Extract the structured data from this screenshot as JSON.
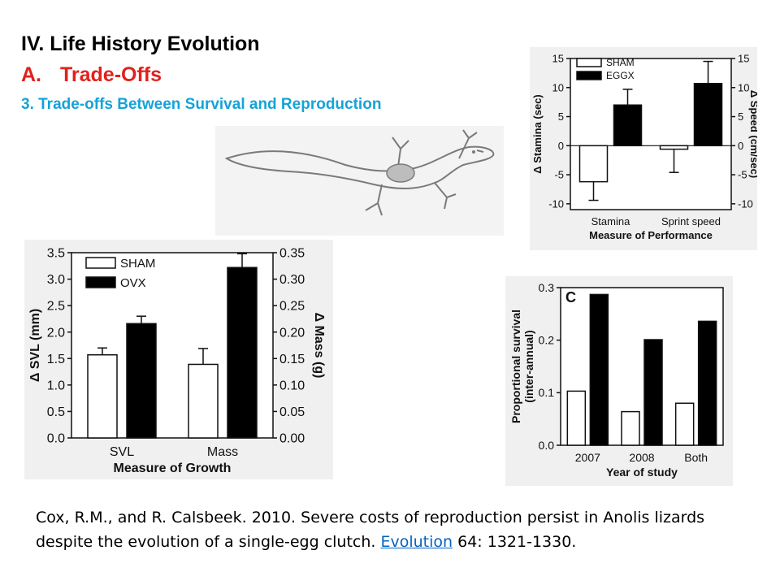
{
  "slide": {
    "title": "IV. Life History Evolution",
    "subtitle_num": "A.",
    "subtitle": "Trade-Offs",
    "section": "3. Trade-offs Between Survival and Reproduction"
  },
  "citation": {
    "text1": "Cox, R.M., and R. Calsbeek. 2010. Severe costs of reproduction persist in Anolis lizards",
    "text2": "despite the evolution of a single-egg clutch. ",
    "link": "Evolution",
    "text3": " 64: 1321-1330."
  },
  "chart_data": [
    {
      "id": "performance",
      "type": "bar",
      "categories": [
        "Stamina",
        "Sprint speed"
      ],
      "series": [
        {
          "name": "SHAM",
          "values": [
            -6.2,
            -0.6
          ],
          "errors": [
            3.2,
            4.0
          ],
          "color": "#ffffff"
        },
        {
          "name": "EGGX",
          "values": [
            7.0,
            10.7
          ],
          "errors": [
            2.7,
            3.8
          ],
          "color": "#000000"
        }
      ],
      "xlabel": "Measure of Performance",
      "ylabel_left": "Δ Stamina (sec)",
      "ylabel_right": "Δ Speed (cm/sec)",
      "ylim": [
        -11,
        15
      ],
      "yticks_left": [
        "15",
        "10",
        "5",
        "0",
        "-5",
        "-10"
      ],
      "yticks_right": [
        "15",
        "10",
        "5",
        "0",
        "-5",
        "-10"
      ],
      "legend_position": "top-left"
    },
    {
      "id": "growth",
      "type": "bar",
      "categories": [
        "SVL",
        "Mass"
      ],
      "series": [
        {
          "name": "SHAM",
          "values": [
            1.57,
            1.39
          ],
          "errors": [
            0.13,
            0.3
          ],
          "color": "#ffffff"
        },
        {
          "name": "OVX",
          "values": [
            2.16,
            3.22
          ],
          "errors": [
            0.14,
            0.26
          ],
          "color": "#000000"
        }
      ],
      "xlabel": "Measure of Growth",
      "ylabel_left": "Δ SVL (mm)",
      "ylabel_right": "Δ Mass (g)",
      "ylim": [
        0,
        3.5
      ],
      "yticks_left": [
        "0.0",
        "0.5",
        "1.0",
        "1.5",
        "2.0",
        "2.5",
        "3.0",
        "3.5"
      ],
      "yticks_right": [
        "0.00",
        "0.05",
        "0.10",
        "0.15",
        "0.20",
        "0.25",
        "0.30",
        "0.35"
      ],
      "legend_position": "top-left"
    },
    {
      "id": "survival",
      "type": "bar",
      "panel_label": "C",
      "categories": [
        "2007",
        "2008",
        "Both"
      ],
      "series": [
        {
          "values": [
            0.103,
            0.064,
            0.08
          ],
          "color": "#ffffff"
        },
        {
          "values": [
            0.287,
            0.201,
            0.236
          ],
          "color": "#000000"
        }
      ],
      "xlabel": "Year of study",
      "ylabel_line1": "Proportional survival",
      "ylabel_line2": "(inter-annual)",
      "ylim": [
        0,
        0.3
      ],
      "yticks": [
        "0.0",
        "0.1",
        "0.2",
        "0.3"
      ]
    }
  ]
}
